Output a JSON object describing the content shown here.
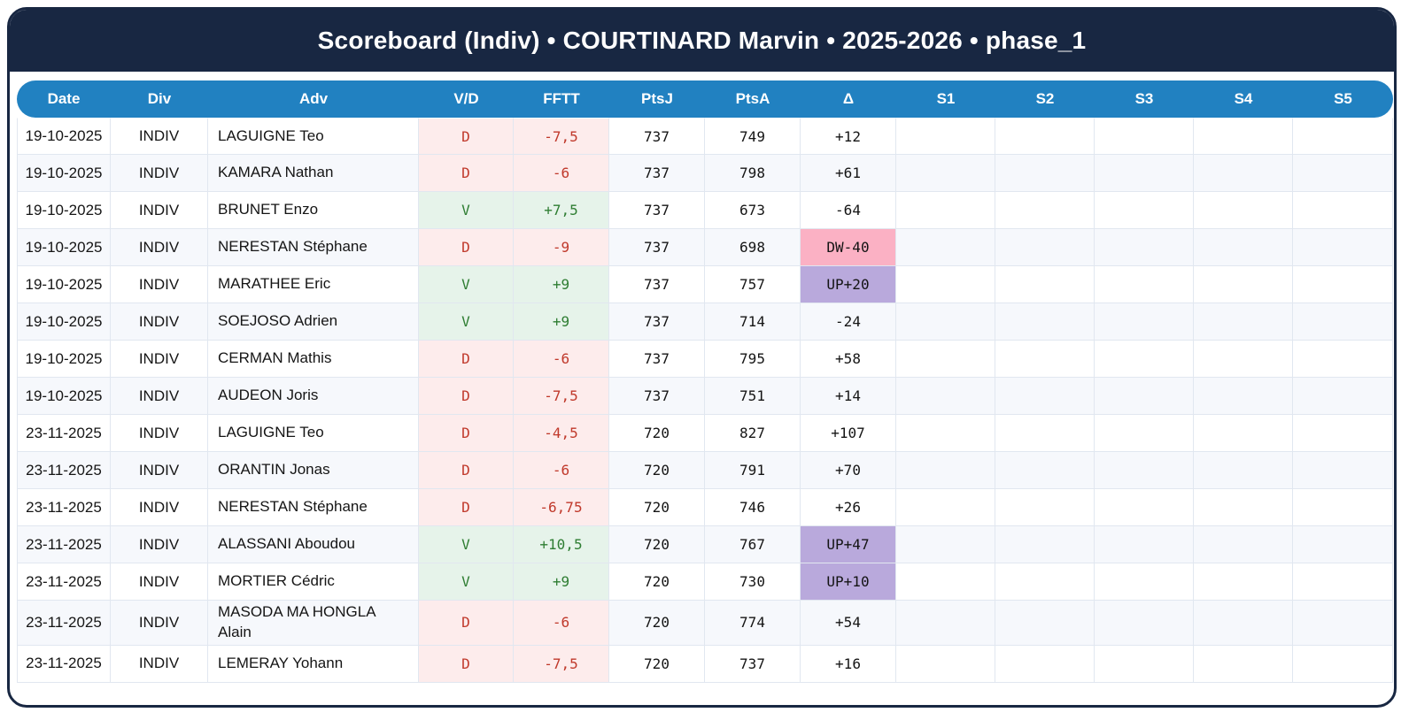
{
  "title": "Scoreboard (Indiv) • COURTINARD Marvin • 2025-2026 • phase_1",
  "colors": {
    "frame_navy": "#182742",
    "header_blue": "#2181c1",
    "win_bg": "#e6f3ea",
    "win_text": "#2e7d32",
    "loss_bg": "#fdecec",
    "loss_text": "#c0392b",
    "delta_up_bg": "#b9a9dc",
    "delta_down_bg": "#fbb1c4",
    "row_stripe": "#f6f8fc",
    "grid_line": "#e1e7f0"
  },
  "table": {
    "columns": [
      "Date",
      "Div",
      "Adv",
      "V/D",
      "FFTT",
      "PtsJ",
      "PtsA",
      "Δ",
      "S1",
      "S2",
      "S3",
      "S4",
      "S5"
    ],
    "rows": [
      {
        "date": "19-10-2025",
        "div": "INDIV",
        "adv": "LAGUIGNE Teo",
        "vd": "D",
        "fftt": "-7,5",
        "ptsj": "737",
        "ptsa": "749",
        "delta": "+12",
        "delta_style": "plain",
        "s1": "",
        "s2": "",
        "s3": "",
        "s4": "",
        "s5": ""
      },
      {
        "date": "19-10-2025",
        "div": "INDIV",
        "adv": "KAMARA Nathan",
        "vd": "D",
        "fftt": "-6",
        "ptsj": "737",
        "ptsa": "798",
        "delta": "+61",
        "delta_style": "plain",
        "s1": "",
        "s2": "",
        "s3": "",
        "s4": "",
        "s5": ""
      },
      {
        "date": "19-10-2025",
        "div": "INDIV",
        "adv": "BRUNET Enzo",
        "vd": "V",
        "fftt": "+7,5",
        "ptsj": "737",
        "ptsa": "673",
        "delta": "-64",
        "delta_style": "plain",
        "s1": "",
        "s2": "",
        "s3": "",
        "s4": "",
        "s5": ""
      },
      {
        "date": "19-10-2025",
        "div": "INDIV",
        "adv": "NERESTAN Stéphane",
        "vd": "D",
        "fftt": "-9",
        "ptsj": "737",
        "ptsa": "698",
        "delta": "DW-40",
        "delta_style": "dw",
        "s1": "",
        "s2": "",
        "s3": "",
        "s4": "",
        "s5": ""
      },
      {
        "date": "19-10-2025",
        "div": "INDIV",
        "adv": "MARATHEE Eric",
        "vd": "V",
        "fftt": "+9",
        "ptsj": "737",
        "ptsa": "757",
        "delta": "UP+20",
        "delta_style": "up",
        "s1": "",
        "s2": "",
        "s3": "",
        "s4": "",
        "s5": ""
      },
      {
        "date": "19-10-2025",
        "div": "INDIV",
        "adv": "SOEJOSO Adrien",
        "vd": "V",
        "fftt": "+9",
        "ptsj": "737",
        "ptsa": "714",
        "delta": "-24",
        "delta_style": "plain",
        "s1": "",
        "s2": "",
        "s3": "",
        "s4": "",
        "s5": ""
      },
      {
        "date": "19-10-2025",
        "div": "INDIV",
        "adv": "CERMAN Mathis",
        "vd": "D",
        "fftt": "-6",
        "ptsj": "737",
        "ptsa": "795",
        "delta": "+58",
        "delta_style": "plain",
        "s1": "",
        "s2": "",
        "s3": "",
        "s4": "",
        "s5": ""
      },
      {
        "date": "19-10-2025",
        "div": "INDIV",
        "adv": "AUDEON Joris",
        "vd": "D",
        "fftt": "-7,5",
        "ptsj": "737",
        "ptsa": "751",
        "delta": "+14",
        "delta_style": "plain",
        "s1": "",
        "s2": "",
        "s3": "",
        "s4": "",
        "s5": ""
      },
      {
        "date": "23-11-2025",
        "div": "INDIV",
        "adv": "LAGUIGNE Teo",
        "vd": "D",
        "fftt": "-4,5",
        "ptsj": "720",
        "ptsa": "827",
        "delta": "+107",
        "delta_style": "plain",
        "s1": "",
        "s2": "",
        "s3": "",
        "s4": "",
        "s5": ""
      },
      {
        "date": "23-11-2025",
        "div": "INDIV",
        "adv": "ORANTIN Jonas",
        "vd": "D",
        "fftt": "-6",
        "ptsj": "720",
        "ptsa": "791",
        "delta": "+70",
        "delta_style": "plain",
        "s1": "",
        "s2": "",
        "s3": "",
        "s4": "",
        "s5": ""
      },
      {
        "date": "23-11-2025",
        "div": "INDIV",
        "adv": "NERESTAN Stéphane",
        "vd": "D",
        "fftt": "-6,75",
        "ptsj": "720",
        "ptsa": "746",
        "delta": "+26",
        "delta_style": "plain",
        "s1": "",
        "s2": "",
        "s3": "",
        "s4": "",
        "s5": ""
      },
      {
        "date": "23-11-2025",
        "div": "INDIV",
        "adv": "ALASSANI Aboudou",
        "vd": "V",
        "fftt": "+10,5",
        "ptsj": "720",
        "ptsa": "767",
        "delta": "UP+47",
        "delta_style": "up",
        "s1": "",
        "s2": "",
        "s3": "",
        "s4": "",
        "s5": ""
      },
      {
        "date": "23-11-2025",
        "div": "INDIV",
        "adv": "MORTIER Cédric",
        "vd": "V",
        "fftt": "+9",
        "ptsj": "720",
        "ptsa": "730",
        "delta": "UP+10",
        "delta_style": "up",
        "s1": "",
        "s2": "",
        "s3": "",
        "s4": "",
        "s5": ""
      },
      {
        "date": "23-11-2025",
        "div": "INDIV",
        "adv": "MASODA MA HONGLA Alain",
        "vd": "D",
        "fftt": "-6",
        "ptsj": "720",
        "ptsa": "774",
        "delta": "+54",
        "delta_style": "plain",
        "s1": "",
        "s2": "",
        "s3": "",
        "s4": "",
        "s5": ""
      },
      {
        "date": "23-11-2025",
        "div": "INDIV",
        "adv": "LEMERAY Yohann",
        "vd": "D",
        "fftt": "-7,5",
        "ptsj": "720",
        "ptsa": "737",
        "delta": "+16",
        "delta_style": "plain",
        "s1": "",
        "s2": "",
        "s3": "",
        "s4": "",
        "s5": ""
      }
    ]
  }
}
